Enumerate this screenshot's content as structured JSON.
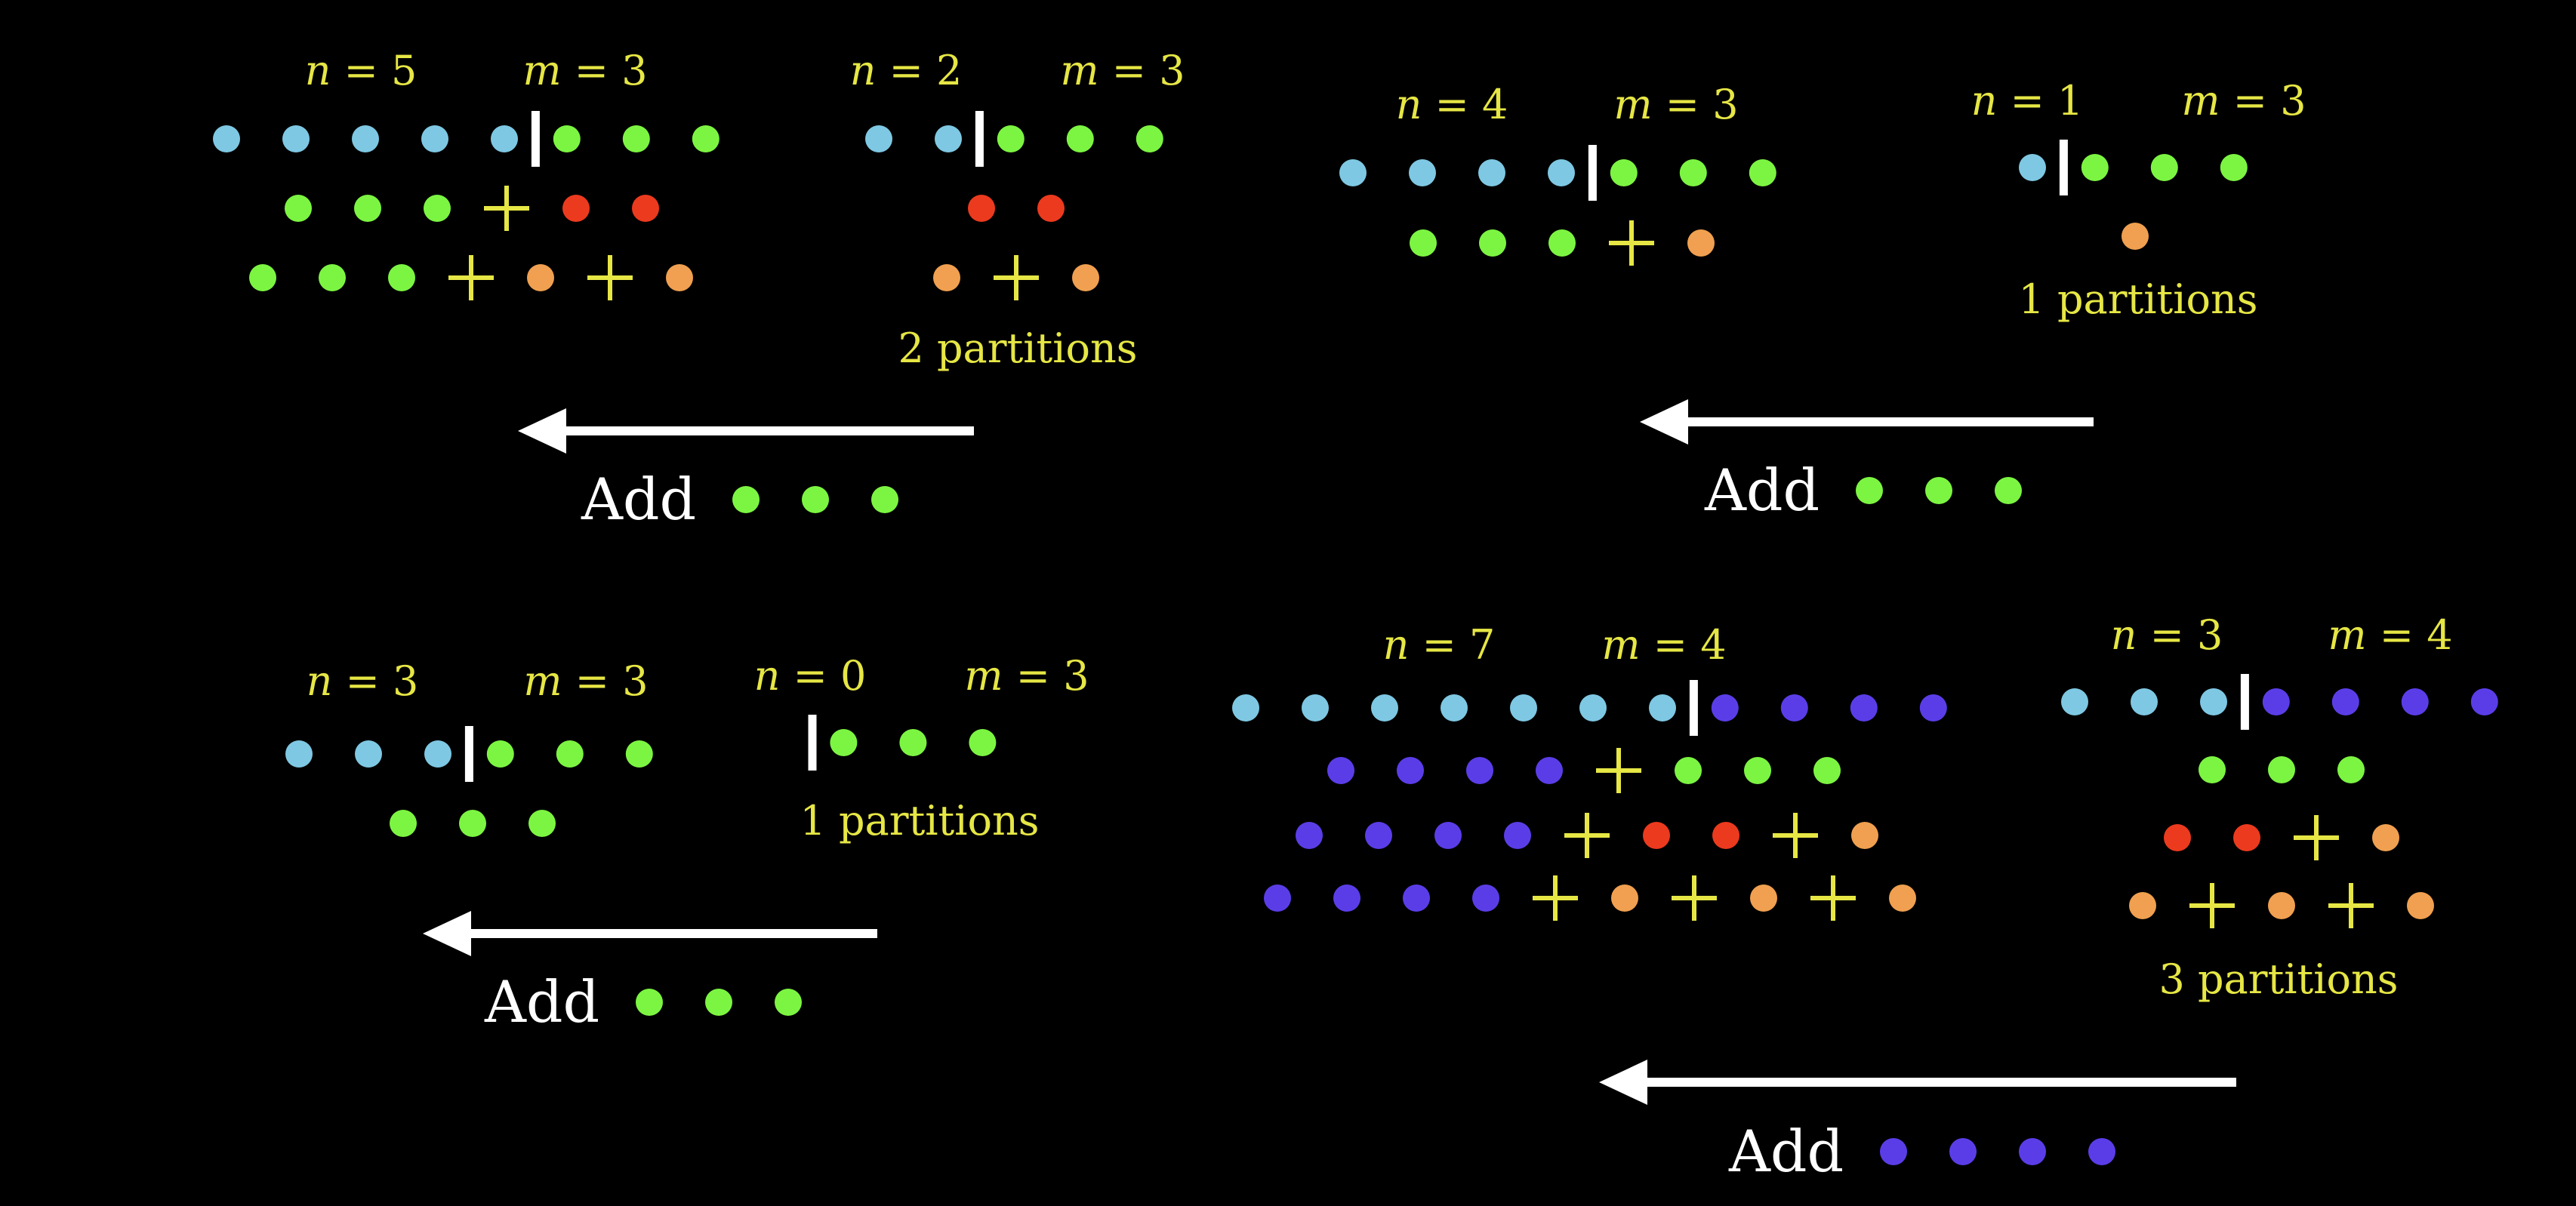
{
  "colors": {
    "background": "#000000",
    "blue": "#7ec8e3",
    "green": "#7cf542",
    "red": "#ec3a1e",
    "orange": "#f0a050",
    "purple": "#5b3de8",
    "label": "#e6e645",
    "white": "#ffffff"
  },
  "add_label": "Add",
  "panels": [
    {
      "left": {
        "n_label": "n = 5",
        "m_label": "m = 3",
        "rows": [
          [
            "blue",
            "blue",
            "blue",
            "blue",
            "blue",
            "|",
            "green",
            "green",
            "green"
          ],
          [
            "green",
            "green",
            "green",
            "+",
            "red",
            "red"
          ],
          [
            "green",
            "green",
            "green",
            "+",
            "orange",
            "+",
            "orange"
          ]
        ]
      },
      "right": {
        "n_label": "n = 2",
        "m_label": "m = 3",
        "rows": [
          [
            "blue",
            "blue",
            "|",
            "green",
            "green",
            "green"
          ],
          [
            "red",
            "red"
          ],
          [
            "orange",
            "+",
            "orange"
          ]
        ],
        "partitions_text": "2 partitions"
      },
      "add_dots": [
        "green",
        "green",
        "green"
      ]
    },
    {
      "left": {
        "n_label": "n = 4",
        "m_label": "m = 3",
        "rows": [
          [
            "blue",
            "blue",
            "blue",
            "blue",
            "|",
            "green",
            "green",
            "green"
          ],
          [
            "green",
            "green",
            "green",
            "+",
            "orange"
          ]
        ]
      },
      "right": {
        "n_label": "n = 1",
        "m_label": "m = 3",
        "rows": [
          [
            "blue",
            "|",
            "green",
            "green",
            "green"
          ],
          [
            "orange"
          ]
        ],
        "partitions_text": "1 partitions"
      },
      "add_dots": [
        "green",
        "green",
        "green"
      ]
    },
    {
      "left": {
        "n_label": "n = 3",
        "m_label": "m = 3",
        "rows": [
          [
            "blue",
            "blue",
            "blue",
            "|",
            "green",
            "green",
            "green"
          ],
          [
            "green",
            "green",
            "green"
          ]
        ]
      },
      "right": {
        "n_label": "n = 0",
        "m_label": "m = 3",
        "rows": [
          [
            "|",
            "green",
            "green",
            "green"
          ]
        ],
        "partitions_text": "1 partitions"
      },
      "add_dots": [
        "green",
        "green",
        "green"
      ]
    },
    {
      "left": {
        "n_label": "n = 7",
        "m_label": "m = 4",
        "rows": [
          [
            "blue",
            "blue",
            "blue",
            "blue",
            "blue",
            "blue",
            "blue",
            "|",
            "purple",
            "purple",
            "purple",
            "purple"
          ],
          [
            "purple",
            "purple",
            "purple",
            "purple",
            "+",
            "green",
            "green",
            "green"
          ],
          [
            "purple",
            "purple",
            "purple",
            "purple",
            "+",
            "red",
            "red",
            "+",
            "orange"
          ],
          [
            "purple",
            "purple",
            "purple",
            "purple",
            "+",
            "orange",
            "+",
            "orange",
            "+",
            "orange"
          ]
        ]
      },
      "right": {
        "n_label": "n = 3",
        "m_label": "m = 4",
        "rows": [
          [
            "blue",
            "blue",
            "blue",
            "|",
            "purple",
            "purple",
            "purple",
            "purple"
          ],
          [
            "green",
            "green",
            "green"
          ],
          [
            "red",
            "red",
            "+",
            "orange"
          ],
          [
            "orange",
            "+",
            "orange",
            "+",
            "orange"
          ]
        ],
        "partitions_text": "3 partitions"
      },
      "add_dots": [
        "purple",
        "purple",
        "purple",
        "purple"
      ]
    }
  ]
}
